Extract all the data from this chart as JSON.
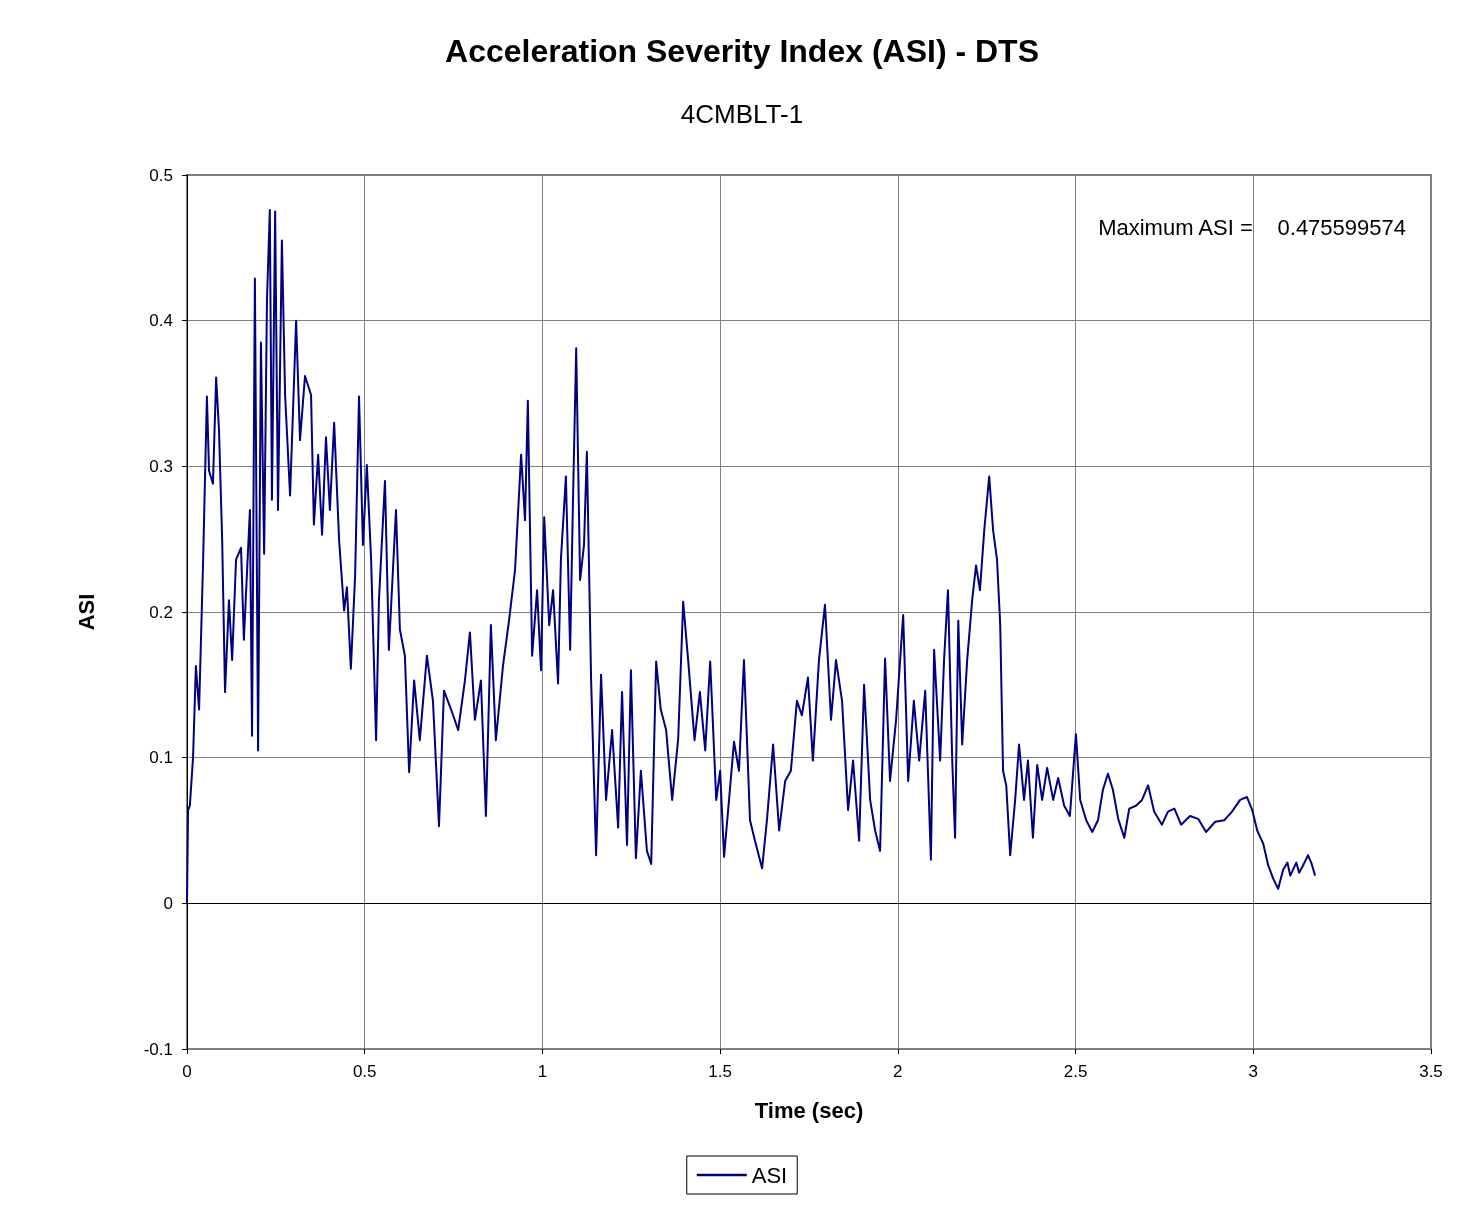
{
  "chart_data": {
    "type": "line",
    "title": "Acceleration Severity Index (ASI) - DTS",
    "subtitle": "4CMBLT-1",
    "xlabel": "Time (sec)",
    "ylabel": "ASI",
    "annotations": [
      "Maximum ASI =",
      "0.475599574"
    ],
    "xlim": [
      0,
      3.5
    ],
    "xticks": [
      0,
      0.5,
      1,
      1.5,
      2,
      2.5,
      3,
      3.5
    ],
    "ylim": [
      -0.1,
      0.5
    ],
    "yticks": [
      -0.1,
      0,
      0.1,
      0.2,
      0.3,
      0.4,
      0.5
    ],
    "grid": true,
    "legend": "bottom",
    "marker": "none",
    "line_style": "solid",
    "series": [
      {
        "name": "ASI",
        "color": "#000080",
        "x": [
          0,
          0.003,
          0.008,
          0.017,
          0.025,
          0.034,
          0.045,
          0.056,
          0.062,
          0.073,
          0.082,
          0.09,
          0.099,
          0.107,
          0.118,
          0.127,
          0.138,
          0.152,
          0.16,
          0.177,
          0.183,
          0.191,
          0.2,
          0.208,
          0.217,
          0.225,
          0.233,
          0.239,
          0.248,
          0.256,
          0.267,
          0.276,
          0.29,
          0.307,
          0.318,
          0.332,
          0.349,
          0.357,
          0.369,
          0.38,
          0.391,
          0.402,
          0.414,
          0.428,
          0.442,
          0.45,
          0.461,
          0.473,
          0.484,
          0.495,
          0.506,
          0.518,
          0.532,
          0.54,
          0.557,
          0.568,
          0.588,
          0.599,
          0.613,
          0.625,
          0.639,
          0.655,
          0.675,
          0.692,
          0.709,
          0.723,
          0.746,
          0.763,
          0.782,
          0.796,
          0.81,
          0.827,
          0.841,
          0.855,
          0.869,
          0.889,
          0.906,
          0.923,
          0.94,
          0.951,
          0.959,
          0.971,
          0.985,
          0.996,
          1.005,
          1.019,
          1.03,
          1.044,
          1.052,
          1.066,
          1.078,
          1.086,
          1.095,
          1.106,
          1.117,
          1.125,
          1.137,
          1.151,
          1.165,
          1.179,
          1.196,
          1.213,
          1.224,
          1.238,
          1.249,
          1.263,
          1.277,
          1.294,
          1.306,
          1.32,
          1.333,
          1.348,
          1.365,
          1.382,
          1.396,
          1.41,
          1.428,
          1.443,
          1.458,
          1.472,
          1.489,
          1.5,
          1.511,
          1.525,
          1.539,
          1.553,
          1.567,
          1.584,
          1.598,
          1.618,
          1.632,
          1.649,
          1.666,
          1.683,
          1.699,
          1.716,
          1.73,
          1.747,
          1.761,
          1.778,
          1.795,
          1.812,
          1.826,
          1.843,
          1.86,
          1.874,
          1.891,
          1.905,
          1.922,
          1.936,
          1.95,
          1.964,
          1.978,
          1.995,
          2.015,
          2.029,
          2.045,
          2.06,
          2.077,
          2.093,
          2.102,
          2.119,
          2.13,
          2.141,
          2.153,
          2.161,
          2.17,
          2.181,
          2.195,
          2.209,
          2.22,
          2.231,
          2.243,
          2.257,
          2.268,
          2.279,
          2.288,
          2.296,
          2.305,
          2.316,
          2.33,
          2.341,
          2.355,
          2.366,
          2.38,
          2.392,
          2.406,
          2.42,
          2.437,
          2.451,
          2.468,
          2.484,
          2.501,
          2.513,
          2.53,
          2.547,
          2.563,
          2.577,
          2.591,
          2.605,
          2.62,
          2.637,
          2.651,
          2.67,
          2.687,
          2.704,
          2.721,
          2.743,
          2.76,
          2.778,
          2.797,
          2.822,
          2.845,
          2.867,
          2.893,
          2.918,
          2.94,
          2.963,
          2.982,
          2.997,
          3.011,
          3.028,
          3.042,
          3.056,
          3.07,
          3.084,
          3.096,
          3.104,
          3.121,
          3.129,
          3.14,
          3.154,
          3.163,
          3.174
        ],
        "values": [
          0,
          0.064,
          0.067,
          0.1,
          0.163,
          0.133,
          0.232,
          0.348,
          0.297,
          0.288,
          0.361,
          0.325,
          0.249,
          0.145,
          0.208,
          0.167,
          0.236,
          0.244,
          0.181,
          0.27,
          0.115,
          0.429,
          0.105,
          0.385,
          0.24,
          0.414,
          0.476,
          0.277,
          0.475,
          0.27,
          0.455,
          0.349,
          0.28,
          0.4,
          0.318,
          0.362,
          0.349,
          0.26,
          0.308,
          0.253,
          0.32,
          0.27,
          0.33,
          0.249,
          0.201,
          0.217,
          0.161,
          0.225,
          0.348,
          0.246,
          0.301,
          0.236,
          0.112,
          0.208,
          0.29,
          0.174,
          0.27,
          0.188,
          0.17,
          0.09,
          0.153,
          0.112,
          0.17,
          0.139,
          0.053,
          0.146,
          0.131,
          0.119,
          0.153,
          0.186,
          0.126,
          0.153,
          0.06,
          0.191,
          0.112,
          0.163,
          0.194,
          0.229,
          0.308,
          0.263,
          0.345,
          0.17,
          0.215,
          0.16,
          0.265,
          0.191,
          0.215,
          0.151,
          0.236,
          0.293,
          0.174,
          0.277,
          0.381,
          0.222,
          0.246,
          0.31,
          0.153,
          0.033,
          0.157,
          0.071,
          0.119,
          0.052,
          0.145,
          0.04,
          0.16,
          0.031,
          0.091,
          0.036,
          0.027,
          0.166,
          0.133,
          0.119,
          0.071,
          0.113,
          0.207,
          0.167,
          0.112,
          0.145,
          0.105,
          0.166,
          0.071,
          0.091,
          0.032,
          0.071,
          0.111,
          0.091,
          0.167,
          0.057,
          0.043,
          0.024,
          0.058,
          0.109,
          0.05,
          0.084,
          0.091,
          0.139,
          0.129,
          0.155,
          0.098,
          0.167,
          0.205,
          0.126,
          0.167,
          0.139,
          0.064,
          0.098,
          0.043,
          0.15,
          0.071,
          0.05,
          0.036,
          0.168,
          0.084,
          0.126,
          0.198,
          0.084,
          0.139,
          0.098,
          0.146,
          0.03,
          0.174,
          0.098,
          0.167,
          0.215,
          0.098,
          0.045,
          0.194,
          0.109,
          0.167,
          0.208,
          0.232,
          0.215,
          0.256,
          0.293,
          0.256,
          0.236,
          0.191,
          0.091,
          0.081,
          0.033,
          0.071,
          0.109,
          0.071,
          0.098,
          0.045,
          0.095,
          0.071,
          0.093,
          0.071,
          0.086,
          0.067,
          0.06,
          0.116,
          0.071,
          0.057,
          0.049,
          0.057,
          0.078,
          0.089,
          0.078,
          0.058,
          0.045,
          0.065,
          0.067,
          0.071,
          0.081,
          0.063,
          0.054,
          0.063,
          0.065,
          0.054,
          0.06,
          0.058,
          0.049,
          0.056,
          0.057,
          0.063,
          0.071,
          0.073,
          0.064,
          0.05,
          0.041,
          0.026,
          0.017,
          0.01,
          0.023,
          0.028,
          0.019,
          0.028,
          0.021,
          0.026,
          0.033,
          0.028,
          0.019
        ]
      }
    ]
  }
}
